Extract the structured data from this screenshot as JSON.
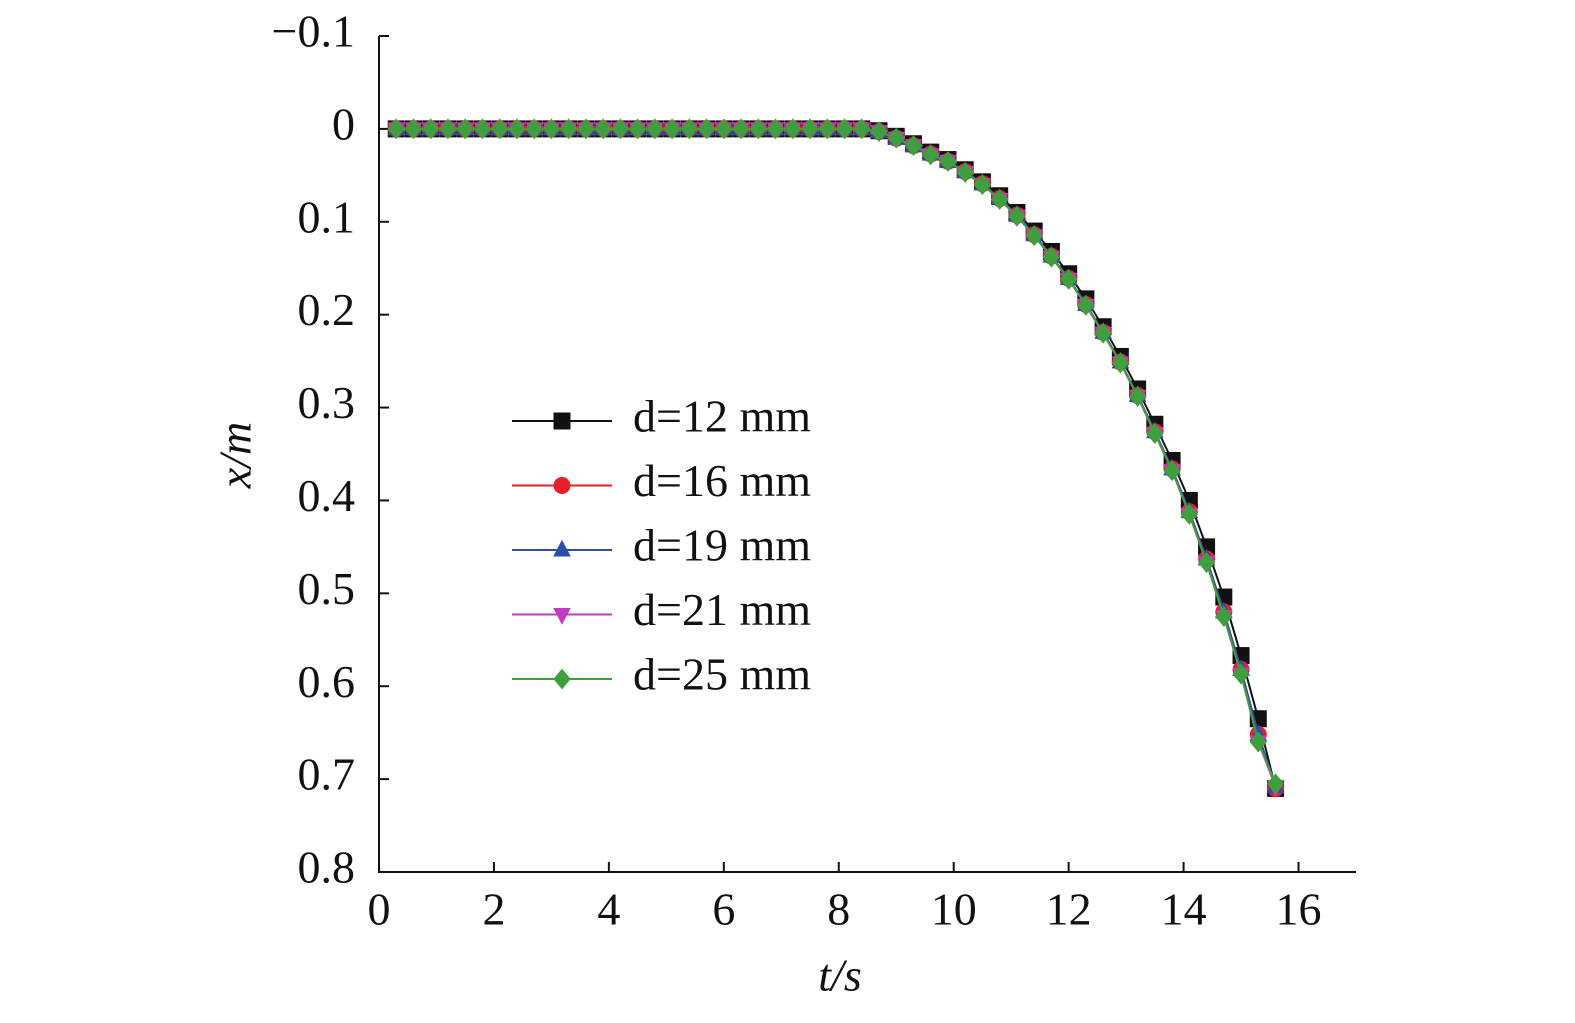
{
  "chart_data": {
    "type": "line",
    "xlabel": "t/s",
    "ylabel": "x/m",
    "xlim": [
      0,
      17
    ],
    "xticks": [
      0,
      2,
      4,
      6,
      8,
      10,
      12,
      14,
      16
    ],
    "ylim": [
      -0.1,
      0.8
    ],
    "yticks": [
      {
        "value": -0.1,
        "label": "−0.1"
      },
      0,
      0.1,
      0.2,
      0.3,
      0.4,
      0.5,
      0.6,
      0.7,
      0.8
    ],
    "y_inverted": true,
    "x": [
      0.3,
      0.6,
      0.9,
      1.2,
      1.5,
      1.8,
      2.1,
      2.4,
      2.7,
      3.0,
      3.3,
      3.6,
      3.9,
      4.2,
      4.5,
      4.8,
      5.1,
      5.4,
      5.7,
      6.0,
      6.3,
      6.6,
      6.9,
      7.2,
      7.5,
      7.8,
      8.1,
      8.4,
      8.7,
      9.0,
      9.3,
      9.6,
      9.9,
      10.2,
      10.5,
      10.8,
      11.1,
      11.4,
      11.7,
      12.0,
      12.3,
      12.6,
      12.9,
      13.2,
      13.5,
      13.8,
      14.1,
      14.4,
      14.7,
      15.0,
      15.3,
      15.6
    ],
    "series": [
      {
        "name": "d=12 mm",
        "color": "#111111",
        "marker": "square",
        "values": [
          0,
          0,
          0,
          0,
          0,
          0,
          0,
          0,
          0,
          0,
          0,
          0,
          0,
          0,
          0,
          0,
          0,
          0,
          0,
          0,
          0,
          0,
          0,
          0,
          0,
          0,
          0,
          0,
          0.002,
          0.008,
          0.016,
          0.025,
          0.033,
          0.044,
          0.057,
          0.072,
          0.09,
          0.11,
          0.132,
          0.156,
          0.183,
          0.213,
          0.245,
          0.28,
          0.318,
          0.357,
          0.4,
          0.45,
          0.504,
          0.567,
          0.635,
          0.71
        ]
      },
      {
        "name": "d=16 mm",
        "color": "#e8202a",
        "marker": "circle",
        "values": [
          0,
          0,
          0,
          0,
          0,
          0,
          0,
          0,
          0,
          0,
          0,
          0,
          0,
          0,
          0,
          0,
          0,
          0,
          0,
          0,
          0,
          0,
          0,
          0,
          0,
          0,
          0,
          0,
          0.003,
          0.01,
          0.018,
          0.027,
          0.035,
          0.046,
          0.059,
          0.075,
          0.093,
          0.114,
          0.137,
          0.161,
          0.189,
          0.219,
          0.251,
          0.287,
          0.326,
          0.366,
          0.412,
          0.463,
          0.52,
          0.582,
          0.652,
          0.71
        ]
      },
      {
        "name": "d=19 mm",
        "color": "#2e4fa5",
        "marker": "triangle-up",
        "values": [
          0,
          0,
          0,
          0,
          0,
          0,
          0,
          0,
          0,
          0,
          0,
          0,
          0,
          0,
          0,
          0,
          0,
          0,
          0,
          0,
          0,
          0,
          0,
          0,
          0,
          0,
          0,
          0,
          0.003,
          0.01,
          0.018,
          0.027,
          0.035,
          0.046,
          0.059,
          0.075,
          0.093,
          0.114,
          0.137,
          0.161,
          0.189,
          0.219,
          0.251,
          0.287,
          0.326,
          0.366,
          0.412,
          0.463,
          0.52,
          0.582,
          0.652,
          0.708
        ]
      },
      {
        "name": "d=21 mm",
        "color": "#c03cc0",
        "marker": "triangle-down",
        "values": [
          0,
          0,
          0,
          0,
          0,
          0,
          0,
          0,
          0,
          0,
          0,
          0,
          0,
          0,
          0,
          0,
          0,
          0,
          0,
          0,
          0,
          0,
          0,
          0,
          0,
          0,
          0,
          0,
          0.003,
          0.01,
          0.018,
          0.028,
          0.035,
          0.047,
          0.06,
          0.076,
          0.094,
          0.115,
          0.138,
          0.162,
          0.19,
          0.22,
          0.252,
          0.288,
          0.328,
          0.368,
          0.415,
          0.467,
          0.525,
          0.587,
          0.66,
          0.708
        ]
      },
      {
        "name": "d=25 mm",
        "color": "#3f9f3f",
        "marker": "diamond",
        "values": [
          0,
          0,
          0,
          0,
          0,
          0,
          0,
          0,
          0,
          0,
          0,
          0,
          0,
          0,
          0,
          0,
          0,
          0,
          0,
          0,
          0,
          0,
          0,
          0,
          0,
          0,
          0,
          0,
          0.003,
          0.01,
          0.018,
          0.028,
          0.035,
          0.047,
          0.06,
          0.076,
          0.094,
          0.115,
          0.138,
          0.162,
          0.19,
          0.22,
          0.252,
          0.288,
          0.328,
          0.368,
          0.415,
          0.467,
          0.525,
          0.587,
          0.66,
          0.705
        ]
      }
    ]
  }
}
